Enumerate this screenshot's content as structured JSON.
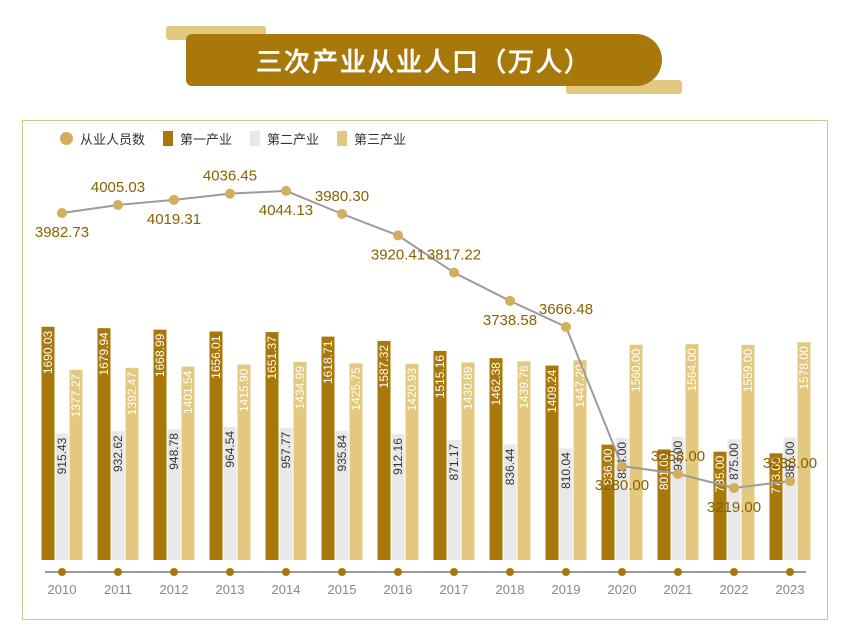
{
  "title": "三次产业从业人口（万人）",
  "legend": {
    "total": "从业人员数",
    "primary": "第一产业",
    "secondary": "第二产业",
    "tertiary": "第三产业"
  },
  "colors": {
    "total": "#d3ae5d",
    "primary": "#a9780a",
    "secondary": "#e8e8e8",
    "tertiary": "#e3c87f",
    "line": "#9b9b9b",
    "label_gold": "#8a6100"
  },
  "chart_data": {
    "type": "bar",
    "categories": [
      "2010",
      "2011",
      "2012",
      "2013",
      "2014",
      "2015",
      "2016",
      "2017",
      "2018",
      "2019",
      "2020",
      "2021",
      "2022",
      "2023"
    ],
    "series": [
      {
        "name": "第一产业",
        "values": [
          "1690.03",
          "1679.94",
          "1668.99",
          "1656.01",
          "1651.37",
          "1618.71",
          "1587.32",
          "1515.16",
          "1462.38",
          "1409.24",
          "836.00",
          "801.00",
          "785.00",
          "773.00"
        ]
      },
      {
        "name": "第二产业",
        "values": [
          "915.43",
          "932.62",
          "948.78",
          "964.54",
          "957.77",
          "935.84",
          "912.16",
          "871.17",
          "836.44",
          "810.04",
          "884.00",
          "893.00",
          "875.00",
          "887.00"
        ]
      },
      {
        "name": "第三产业",
        "values": [
          "1377.27",
          "1392.47",
          "1401.54",
          "1415.90",
          "1434.99",
          "1425.75",
          "1420.93",
          "1430.89",
          "1439.76",
          "1447.20",
          "1560.00",
          "1564.00",
          "1559.00",
          "1578.00"
        ]
      }
    ],
    "line": {
      "name": "从业人员数",
      "values": [
        "3982.73",
        "4005.03",
        "4019.31",
        "4036.45",
        "4044.13",
        "3980.30",
        "3920.41",
        "3817.22",
        "3738.58",
        "3666.48",
        "3280.00",
        "3258.00",
        "3219.00",
        "3238.00"
      ]
    },
    "label_positions": [
      "below",
      "above",
      "below",
      "above",
      "below",
      "above",
      "below",
      "above",
      "below",
      "above",
      "below",
      "above",
      "below",
      "above"
    ]
  }
}
